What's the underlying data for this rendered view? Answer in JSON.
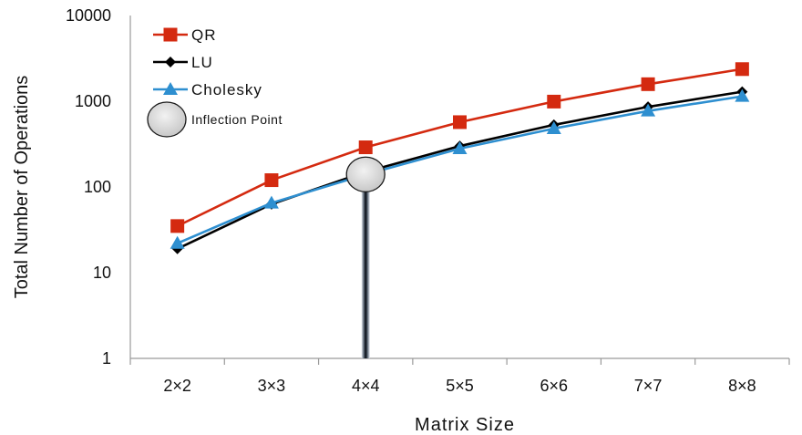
{
  "chart_data": {
    "type": "line",
    "title": "",
    "xlabel": "Matrix Size",
    "ylabel": "Total Number of Operations",
    "yscale": "log",
    "ylim": [
      1,
      10000
    ],
    "y_ticks": [
      "1",
      "10",
      "100",
      "1000",
      "10000"
    ],
    "categories": [
      "2×2",
      "3×3",
      "4×4",
      "5×5",
      "6×6",
      "7×7",
      "8×8"
    ],
    "grid": false,
    "legend_position": "top-left",
    "series": [
      {
        "name": "QR",
        "color": "#d42a10",
        "marker": "square",
        "values": [
          35,
          120,
          290,
          570,
          990,
          1580,
          2370
        ]
      },
      {
        "name": "LU",
        "color": "#000000",
        "marker": "diamond",
        "values": [
          19,
          63,
          150,
          300,
          530,
          860,
          1290
        ]
      },
      {
        "name": "Cholesky",
        "color": "#2e8fd0",
        "marker": "triangle",
        "values": [
          22,
          65,
          140,
          280,
          480,
          770,
          1140
        ]
      }
    ],
    "annotation": {
      "label": "Inflection Point",
      "category": "4×4",
      "value": 140
    }
  }
}
